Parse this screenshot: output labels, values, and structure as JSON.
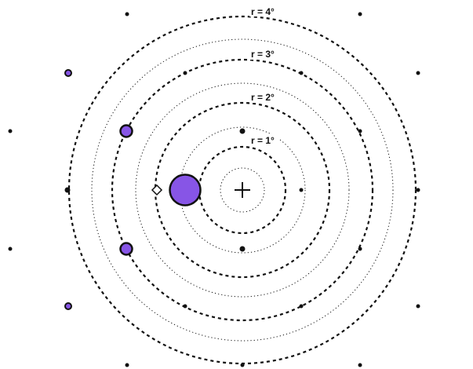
{
  "ring_labels": [
    "r = 1°",
    "r = 2°",
    "r = 3°",
    "r = 4°"
  ],
  "colors": {
    "stroke": "#111111",
    "marker_fill": "#8755e6",
    "background": "#ffffff"
  },
  "icons": {
    "center": "fixation-cross-icon",
    "probe": "diamond-icon"
  }
}
